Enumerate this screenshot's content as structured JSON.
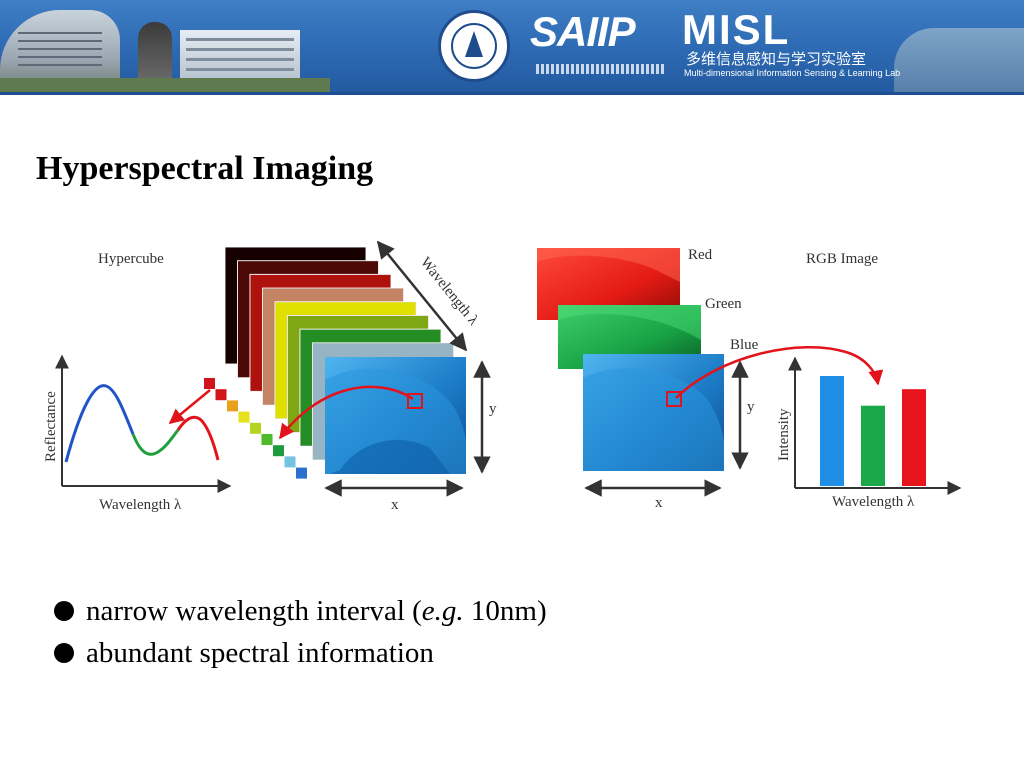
{
  "banner": {
    "saiip_logo": "SAIIP",
    "misl_logo": "MISL",
    "misl_chinese": "多维信息感知与学习实验室",
    "misl_english": "Multi-dimensional Information Sensing & Learning Lab"
  },
  "slide": {
    "title": "Hyperspectral Imaging",
    "bullets": [
      "narrow wavelength interval (e.g. 10nm)",
      "abundant spectral information"
    ]
  },
  "figure": {
    "hypercube": {
      "label": "Hypercube",
      "axis_wavelength": "Wavelength λ",
      "axis_x": "x",
      "axis_y": "y",
      "band_colors": [
        "#1a0000",
        "#5e0c08",
        "#c8140e",
        "#f0a078",
        "#ffff00",
        "#9ccc18",
        "#2aa12a",
        "#b7dcee",
        "#1a86d2"
      ]
    },
    "spectrum_plot": {
      "ylabel": "Reflectance",
      "xlabel": "Wavelength λ"
    },
    "rgb": {
      "label": "RGB Image",
      "channels": [
        "Red",
        "Green",
        "Blue"
      ],
      "axis_x": "x",
      "axis_y": "y"
    },
    "intensity_plot": {
      "ylabel": "Intensity",
      "xlabel": "Wavelength λ",
      "bars": [
        {
          "channel": "blue",
          "value": 1.0,
          "color": "#1f8ee6"
        },
        {
          "channel": "green",
          "value": 0.73,
          "color": "#1aa84a"
        },
        {
          "channel": "red",
          "value": 0.88,
          "color": "#e8141c"
        }
      ]
    },
    "colors": {
      "arrow": "#e3131b",
      "pixel_red": "#e3131b",
      "pixel_green": "#2fb24a",
      "pixel_blue": "#2b6fcf",
      "axis": "#333333"
    }
  }
}
